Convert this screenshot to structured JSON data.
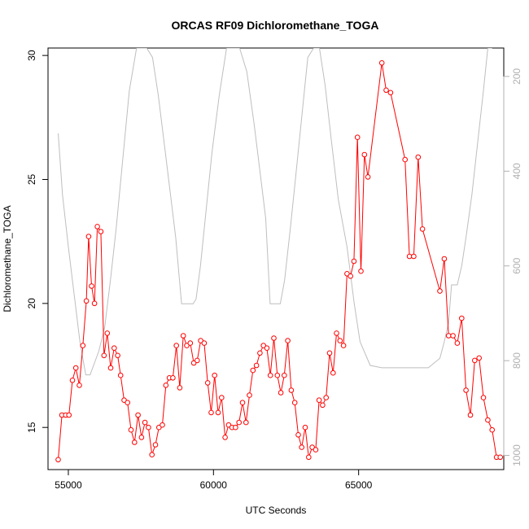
{
  "chart_data": {
    "type": "line",
    "title": "ORCAS RF09 Dichloromethane_TOGA",
    "xlabel": "UTC Seconds",
    "ylabel": "Dichloromethane_TOGA",
    "xlim": [
      54300,
      70000
    ],
    "ylim": [
      13.3,
      30.3
    ],
    "y2lim": [
      1030,
      140
    ],
    "x_ticks": [
      55000,
      60000,
      65000
    ],
    "y_ticks": [
      15,
      20,
      25,
      30
    ],
    "y2_ticks": [
      200,
      400,
      600,
      800,
      1000
    ],
    "grid": false,
    "legend": "none",
    "colors": {
      "series": "#ff0000",
      "secondary": "#bebebe",
      "axis": "#000000",
      "secondary_axis": "#b0b0b0"
    },
    "series": [
      {
        "color": "#ff0000",
        "style": "line-with-open-circles",
        "axis": "left",
        "x": [
          54650,
          54780,
          54910,
          55020,
          55140,
          55260,
          55380,
          55500,
          55620,
          55700,
          55800,
          55900,
          56000,
          56120,
          56230,
          56340,
          56460,
          56580,
          56700,
          56800,
          56920,
          57040,
          57160,
          57280,
          57400,
          57520,
          57640,
          57760,
          57880,
          58000,
          58120,
          58240,
          58360,
          58480,
          58600,
          58720,
          58840,
          58960,
          59080,
          59200,
          59320,
          59440,
          59560,
          59680,
          59800,
          59920,
          60040,
          60160,
          60280,
          60400,
          60520,
          60640,
          60760,
          60880,
          61000,
          61120,
          61240,
          61360,
          61480,
          61600,
          61720,
          61840,
          61960,
          62080,
          62200,
          62320,
          62440,
          62560,
          62680,
          62800,
          62920,
          63040,
          63160,
          63280,
          63400,
          63520,
          63640,
          63760,
          63880,
          64000,
          64120,
          64240,
          64360,
          64480,
          64600,
          64720,
          64840,
          64960,
          65080,
          65200,
          65320,
          65800,
          65950,
          66100,
          66600,
          66750,
          66900,
          67050,
          67200,
          67800,
          67950,
          68100,
          68250,
          68400,
          68550,
          68700,
          68850,
          69000,
          69150,
          69300,
          69450,
          69600,
          69750,
          69880
        ],
        "y": [
          13.7,
          15.5,
          15.5,
          15.5,
          16.9,
          17.4,
          16.7,
          18.3,
          20.1,
          22.7,
          20.7,
          20.0,
          23.1,
          22.9,
          17.9,
          18.8,
          17.4,
          18.2,
          17.9,
          17.1,
          16.1,
          16.0,
          14.9,
          14.4,
          15.5,
          14.6,
          15.2,
          15.0,
          13.9,
          14.3,
          15.0,
          15.1,
          16.7,
          17.0,
          17.0,
          18.3,
          16.6,
          18.7,
          18.3,
          18.4,
          17.6,
          17.7,
          18.5,
          18.4,
          16.8,
          15.6,
          17.1,
          15.6,
          16.2,
          14.6,
          15.1,
          15.0,
          15.0,
          15.2,
          16.0,
          15.2,
          16.3,
          17.3,
          17.5,
          18.0,
          18.3,
          18.2,
          17.1,
          18.6,
          17.1,
          16.4,
          17.1,
          18.5,
          16.5,
          16.0,
          14.7,
          14.2,
          15.0,
          13.8,
          14.2,
          14.1,
          16.1,
          15.9,
          16.2,
          18.0,
          17.2,
          18.8,
          18.5,
          18.3,
          21.2,
          21.1,
          21.7,
          26.7,
          21.3,
          26.0,
          25.1,
          29.7,
          28.6,
          28.5,
          25.8,
          21.9,
          21.9,
          25.9,
          23.0,
          20.5,
          21.8,
          18.7,
          18.7,
          18.4,
          19.4,
          16.5,
          15.5,
          17.7,
          17.8,
          16.2,
          15.3,
          14.9,
          13.8,
          13.8
        ]
      },
      {
        "color": "#bebebe",
        "style": "line",
        "axis": "right",
        "x": [
          54650,
          54800,
          55000,
          55200,
          55400,
          55600,
          55750,
          55900,
          56050,
          56250,
          56450,
          56650,
          56850,
          57100,
          57350,
          57550,
          57700,
          57900,
          58100,
          58300,
          58500,
          58700,
          58900,
          59100,
          59300,
          59400,
          59550,
          59750,
          59950,
          60200,
          60450,
          60700,
          60900,
          61150,
          61400,
          61600,
          61800,
          61950,
          62150,
          62300,
          62450,
          62650,
          62850,
          63050,
          63250,
          63450,
          63650,
          63850,
          64050,
          64300,
          64600,
          64850,
          65050,
          65400,
          65800,
          66200,
          66600,
          67000,
          67400,
          67800,
          67950,
          68100,
          68200,
          68400,
          68550,
          68700,
          68900,
          69100,
          69300,
          69450,
          69600
        ],
        "y": [
          320,
          450,
          560,
          660,
          760,
          830,
          830,
          805,
          780,
          730,
          630,
          520,
          390,
          230,
          140,
          140,
          140,
          160,
          240,
          340,
          440,
          540,
          680,
          680,
          680,
          670,
          600,
          480,
          360,
          240,
          140,
          140,
          140,
          190,
          300,
          400,
          500,
          680,
          680,
          680,
          630,
          520,
          400,
          280,
          160,
          140,
          140,
          220,
          330,
          460,
          560,
          680,
          760,
          810,
          815,
          815,
          815,
          815,
          815,
          795,
          760,
          720,
          640,
          640,
          600,
          540,
          450,
          340,
          230,
          140,
          140
        ]
      }
    ]
  }
}
